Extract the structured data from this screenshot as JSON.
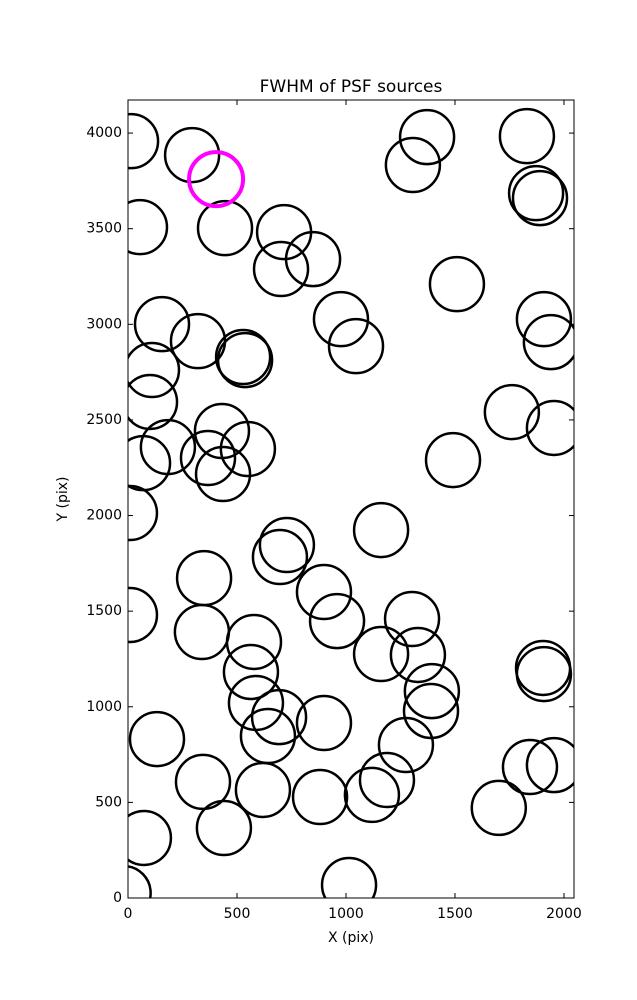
{
  "chart_data": {
    "type": "scatter",
    "title": "FWHM of PSF sources",
    "x_label": "X (pix)",
    "y_label": "Y (pix)",
    "xlim": [
      0,
      2046
    ],
    "ylim": [
      0,
      4173
    ],
    "xticks": [
      0,
      500,
      1000,
      1500,
      2000
    ],
    "yticks": [
      0,
      500,
      1000,
      1500,
      2000,
      2500,
      3000,
      3500,
      4000
    ],
    "marker": "open-circle",
    "series": [
      {
        "color": "#000000",
        "x": [
          14,
          294,
          1372,
          1307,
          1830,
          1872,
          1890,
          55,
          445,
          716,
          849,
          702,
          1509,
          156,
          321,
          977,
          1046,
          1908,
          1940,
          528,
          537,
          110,
          101,
          1761,
          1954,
          431,
          550,
          183,
          367,
          436,
          69,
          1491,
          9,
          1161,
          729,
          697,
          349,
          899,
          9,
          1303,
          959,
          339,
          578,
          1330,
          1161,
          1904,
          1908,
          564,
          1394,
          587,
          1390,
          693,
          899,
          642,
          133,
          1275,
          1844,
          1954,
          344,
          1188,
          619,
          1119,
          881,
          1701,
          440,
          73,
          1014,
          -20
        ],
        "values": [
          3958,
          3885,
          3979,
          3833,
          3984,
          3686,
          3660,
          3508,
          3503,
          3482,
          3341,
          3289,
          3210,
          3001,
          2912,
          3027,
          2886,
          3027,
          2907,
          2829,
          2813,
          2761,
          2594,
          2541,
          2458,
          2442,
          2348,
          2358,
          2301,
          2217,
          2274,
          2290,
          2013,
          1924,
          1846,
          1783,
          1673,
          1600,
          1480,
          1459,
          1448,
          1391,
          1339,
          1271,
          1276,
          1203,
          1171,
          1182,
          1082,
          1020,
          978,
          946,
          915,
          847,
          831,
          800,
          685,
          695,
          607,
          617,
          565,
          539,
          528,
          471,
          366,
          314,
          68,
          26
        ]
      },
      {
        "color": "#ff00ff",
        "x": [
          404
        ],
        "values": [
          3759
        ]
      }
    ]
  }
}
